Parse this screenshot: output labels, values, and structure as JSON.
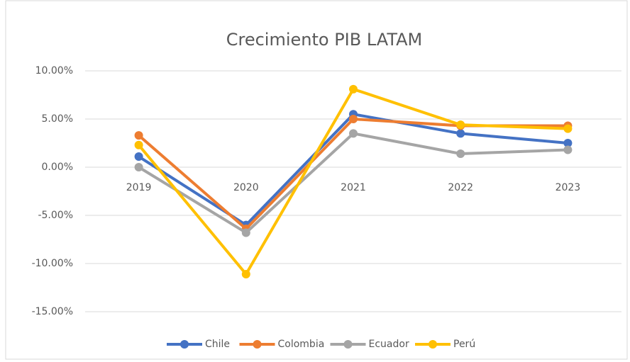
{
  "chart_data": {
    "type": "line",
    "title": "Crecimiento PIB LATAM",
    "categories": [
      "2019",
      "2020",
      "2021",
      "2022",
      "2023"
    ],
    "series": [
      {
        "name": "Chile",
        "color": "#4472c4",
        "values": [
          1.1,
          -6.0,
          5.5,
          3.5,
          2.5
        ]
      },
      {
        "name": "Colombia",
        "color": "#ed7d31",
        "values": [
          3.3,
          -6.4,
          5.0,
          4.3,
          4.3
        ]
      },
      {
        "name": "Ecuador",
        "color": "#a5a5a5",
        "values": [
          0.0,
          -6.8,
          3.5,
          1.4,
          1.8
        ]
      },
      {
        "name": "Perú",
        "color": "#ffc000",
        "values": [
          2.3,
          -11.1,
          8.1,
          4.4,
          4.0
        ]
      }
    ],
    "ylim": [
      -15,
      10
    ],
    "yticks": [
      {
        "value": -15,
        "label": "-15.00%"
      },
      {
        "value": -10,
        "label": "-10.00%"
      },
      {
        "value": -5,
        "label": "-5.00%"
      },
      {
        "value": 0,
        "label": "0.00%"
      },
      {
        "value": 5,
        "label": "5.00%"
      },
      {
        "value": 10,
        "label": "10.00%"
      }
    ],
    "grid": true,
    "legend": "bottom"
  }
}
